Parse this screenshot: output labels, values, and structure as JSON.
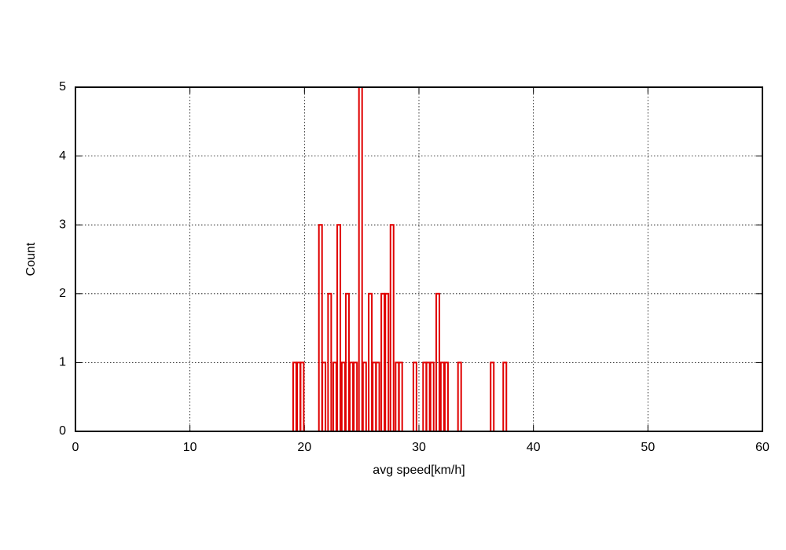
{
  "chart_data": {
    "type": "bar",
    "xlabel": "avg speed[km/h]",
    "ylabel": "Count",
    "x": [
      19.15,
      19.5,
      19.8,
      21.4,
      21.7,
      22.2,
      22.65,
      23.0,
      23.4,
      23.75,
      24.1,
      24.45,
      24.9,
      25.25,
      25.75,
      26.1,
      26.4,
      26.85,
      27.2,
      27.65,
      28.1,
      28.4,
      29.65,
      30.5,
      30.8,
      31.15,
      31.65,
      32.05,
      32.4,
      33.55,
      36.4,
      37.5
    ],
    "values": [
      1,
      1,
      1,
      3,
      1,
      2,
      1,
      3,
      1,
      2,
      1,
      1,
      5,
      1,
      2,
      1,
      1,
      2,
      2,
      3,
      1,
      1,
      1,
      1,
      1,
      1,
      2,
      1,
      1,
      1,
      1,
      1
    ],
    "color": "#e00000",
    "xlim": [
      0,
      60
    ],
    "xticks": [
      0,
      10,
      20,
      30,
      40,
      50,
      60
    ],
    "ylim": [
      0,
      5
    ],
    "yticks": [
      0,
      1,
      2,
      3,
      4,
      5
    ],
    "grid": true
  }
}
